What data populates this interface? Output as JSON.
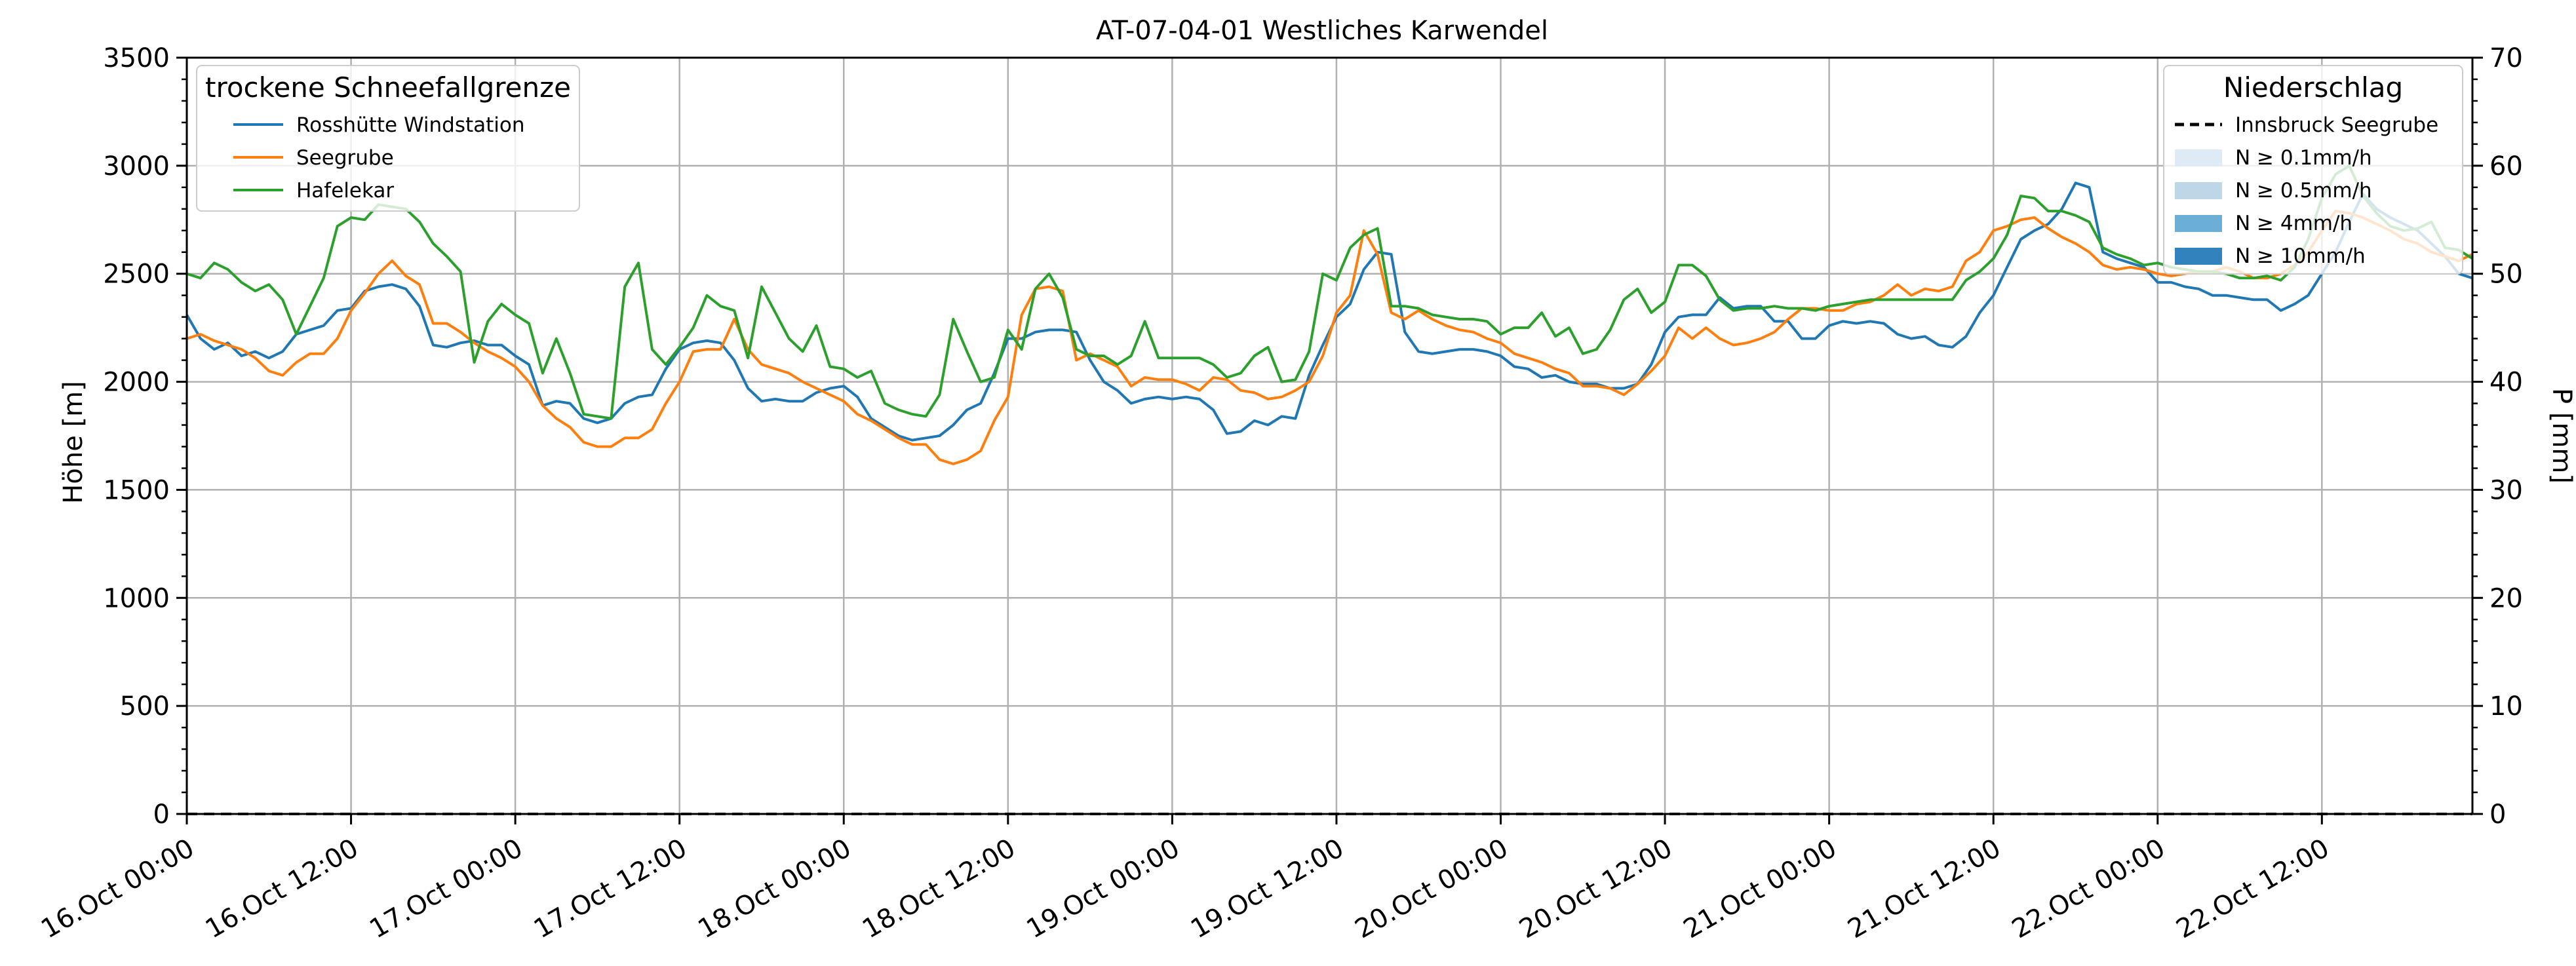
{
  "chart_data": {
    "type": "line",
    "title": "AT-07-04-01 Westliches Karwendel",
    "ylabel": "Höhe [m]",
    "ylabel_right": "P [mm]",
    "ylim": [
      0,
      3500
    ],
    "ylim_right": [
      0,
      70
    ],
    "yticks": [
      0,
      500,
      1000,
      1500,
      2000,
      2500,
      3000,
      3500
    ],
    "yticks_right": [
      0,
      10,
      20,
      30,
      40,
      50,
      60,
      70
    ],
    "xlim_hours": [
      0,
      167
    ],
    "x_step_hours": 1,
    "xticks": [
      {
        "label": "16.Oct 00:00",
        "hour": 0
      },
      {
        "label": "16.Oct 12:00",
        "hour": 12
      },
      {
        "label": "17.Oct 00:00",
        "hour": 24
      },
      {
        "label": "17.Oct 12:00",
        "hour": 36
      },
      {
        "label": "18.Oct 00:00",
        "hour": 48
      },
      {
        "label": "18.Oct 12:00",
        "hour": 60
      },
      {
        "label": "19.Oct 00:00",
        "hour": 72
      },
      {
        "label": "19.Oct 12:00",
        "hour": 84
      },
      {
        "label": "20.Oct 00:00",
        "hour": 96
      },
      {
        "label": "20.Oct 12:00",
        "hour": 108
      },
      {
        "label": "21.Oct 00:00",
        "hour": 120
      },
      {
        "label": "21.Oct 12:00",
        "hour": 132
      },
      {
        "label": "22.Oct 00:00",
        "hour": 144
      },
      {
        "label": "22.Oct 12:00",
        "hour": 156
      }
    ],
    "grid": true,
    "legend_left": {
      "title": "trockene Schneefallgrenze",
      "placement": "top-left"
    },
    "legend_right": {
      "title": "Niederschlag",
      "placement": "top-right",
      "items": [
        {
          "label": "Innsbruck Seegrube",
          "kind": "dashed-line",
          "color": "#000000"
        },
        {
          "label": "N ≥ 0.1mm/h",
          "kind": "patch",
          "color": "#deebf7"
        },
        {
          "label": "N ≥ 0.5mm/h",
          "kind": "patch",
          "color": "#bdd7e7"
        },
        {
          "label": "N ≥ 4mm/h",
          "kind": "patch",
          "color": "#6baed6"
        },
        {
          "label": "N ≥ 10mm/h",
          "kind": "patch",
          "color": "#3182bd"
        }
      ]
    },
    "precipitation_values": [
      0,
      0,
      0,
      0,
      0,
      0,
      0,
      0,
      0,
      0,
      0,
      0,
      0,
      0,
      0,
      0,
      0,
      0,
      0,
      0,
      0,
      0,
      0,
      0,
      0,
      0,
      0,
      0,
      0,
      0,
      0,
      0,
      0,
      0,
      0,
      0,
      0,
      0,
      0,
      0,
      0,
      0,
      0,
      0,
      0,
      0,
      0,
      0,
      0,
      0,
      0,
      0,
      0,
      0,
      0,
      0,
      0,
      0,
      0,
      0,
      0,
      0,
      0,
      0,
      0,
      0,
      0,
      0,
      0,
      0,
      0,
      0,
      0,
      0,
      0,
      0,
      0,
      0,
      0,
      0,
      0,
      0,
      0,
      0,
      0,
      0,
      0,
      0,
      0,
      0,
      0,
      0,
      0,
      0,
      0,
      0,
      0,
      0,
      0,
      0,
      0,
      0,
      0,
      0,
      0,
      0,
      0,
      0,
      0,
      0,
      0,
      0,
      0,
      0,
      0,
      0,
      0,
      0,
      0,
      0,
      0,
      0,
      0,
      0,
      0,
      0,
      0,
      0,
      0,
      0,
      0,
      0,
      0,
      0,
      0,
      0,
      0,
      0,
      0,
      0,
      0,
      0,
      0,
      0,
      0,
      0,
      0,
      0,
      0,
      0,
      0,
      0,
      0,
      0,
      0,
      0,
      0,
      0,
      0,
      0,
      0,
      0,
      0,
      0,
      0,
      0,
      0,
      0
    ],
    "series": [
      {
        "name": "Rosshütte Windstation",
        "color": "#1f77b4",
        "values": [
          2310,
          2200,
          2150,
          2180,
          2120,
          2140,
          2110,
          2140,
          2220,
          2240,
          2260,
          2330,
          2340,
          2420,
          2440,
          2450,
          2430,
          2350,
          2170,
          2160,
          2180,
          2190,
          2170,
          2170,
          2120,
          2080,
          1890,
          1910,
          1900,
          1830,
          1810,
          1830,
          1900,
          1930,
          1940,
          2060,
          2150,
          2180,
          2190,
          2180,
          2100,
          1970,
          1910,
          1920,
          1910,
          1910,
          1950,
          1970,
          1980,
          1930,
          1830,
          1790,
          1750,
          1730,
          1740,
          1750,
          1800,
          1870,
          1900,
          2040,
          2200,
          2200,
          2230,
          2240,
          2240,
          2230,
          2100,
          2000,
          1960,
          1900,
          1920,
          1930,
          1920,
          1930,
          1920,
          1870,
          1760,
          1770,
          1820,
          1800,
          1840,
          1830,
          2030,
          2170,
          2300,
          2360,
          2520,
          2600,
          2590,
          2230,
          2140,
          2130,
          2140,
          2150,
          2150,
          2140,
          2120,
          2070,
          2060,
          2020,
          2030,
          2000,
          1990,
          1990,
          1970,
          1970,
          1990,
          2080,
          2230,
          2300,
          2310,
          2310,
          2390,
          2340,
          2350,
          2350,
          2280,
          2280,
          2200,
          2200,
          2260,
          2280,
          2270,
          2280,
          2270,
          2220,
          2200,
          2210,
          2170,
          2160,
          2210,
          2320,
          2400,
          2530,
          2660,
          2700,
          2730,
          2800,
          2920,
          2900,
          2600,
          2570,
          2550,
          2530,
          2460,
          2460,
          2440,
          2430,
          2400,
          2400,
          2390,
          2380,
          2380,
          2330,
          2360,
          2400,
          2500,
          2600,
          2740,
          2870,
          2800,
          2760,
          2730,
          2700,
          2640,
          2580,
          2500,
          2480
        ]
      },
      {
        "name": "Seegrube",
        "color": "#ff7f0e",
        "values": [
          2200,
          2220,
          2190,
          2170,
          2150,
          2110,
          2050,
          2030,
          2090,
          2130,
          2130,
          2200,
          2330,
          2410,
          2500,
          2560,
          2490,
          2450,
          2270,
          2270,
          2230,
          2180,
          2140,
          2110,
          2070,
          2000,
          1890,
          1830,
          1790,
          1720,
          1700,
          1700,
          1740,
          1740,
          1780,
          1900,
          2000,
          2140,
          2150,
          2150,
          2290,
          2150,
          2080,
          2060,
          2040,
          2000,
          1970,
          1940,
          1910,
          1850,
          1820,
          1780,
          1740,
          1710,
          1710,
          1640,
          1620,
          1640,
          1680,
          1820,
          1930,
          2310,
          2430,
          2440,
          2420,
          2100,
          2130,
          2100,
          2070,
          1980,
          2020,
          2010,
          2010,
          1990,
          1960,
          2020,
          2010,
          1960,
          1950,
          1920,
          1930,
          1960,
          2000,
          2120,
          2320,
          2400,
          2700,
          2590,
          2320,
          2290,
          2330,
          2290,
          2260,
          2240,
          2230,
          2200,
          2180,
          2130,
          2110,
          2090,
          2060,
          2040,
          1980,
          1980,
          1970,
          1940,
          1990,
          2050,
          2120,
          2250,
          2200,
          2250,
          2200,
          2170,
          2180,
          2200,
          2230,
          2290,
          2340,
          2340,
          2330,
          2330,
          2360,
          2370,
          2400,
          2450,
          2400,
          2430,
          2420,
          2440,
          2560,
          2600,
          2700,
          2720,
          2750,
          2760,
          2710,
          2670,
          2640,
          2600,
          2540,
          2520,
          2530,
          2520,
          2500,
          2490,
          2500,
          2510,
          2510,
          2530,
          2510,
          2480,
          2480,
          2500,
          2540,
          2600,
          2700,
          2790,
          2780,
          2760,
          2730,
          2700,
          2660,
          2640,
          2600,
          2580,
          2560,
          2590
        ]
      },
      {
        "name": "Hafelekar",
        "color": "#2ca02c",
        "values": [
          2500,
          2480,
          2550,
          2520,
          2460,
          2420,
          2450,
          2380,
          2220,
          2350,
          2480,
          2720,
          2760,
          2750,
          2820,
          2810,
          2800,
          2740,
          2640,
          2580,
          2510,
          2090,
          2280,
          2360,
          2310,
          2270,
          2040,
          2200,
          2040,
          1850,
          1840,
          1830,
          2440,
          2550,
          2150,
          2080,
          2160,
          2250,
          2400,
          2350,
          2330,
          2110,
          2440,
          2320,
          2200,
          2140,
          2260,
          2070,
          2060,
          2020,
          2050,
          1900,
          1870,
          1850,
          1840,
          1940,
          2290,
          2140,
          2000,
          2020,
          2240,
          2150,
          2430,
          2500,
          2390,
          2150,
          2120,
          2120,
          2080,
          2120,
          2280,
          2110,
          2110,
          2110,
          2110,
          2080,
          2020,
          2040,
          2120,
          2160,
          2000,
          2010,
          2140,
          2500,
          2470,
          2620,
          2680,
          2710,
          2350,
          2350,
          2340,
          2310,
          2300,
          2290,
          2290,
          2280,
          2220,
          2250,
          2250,
          2320,
          2210,
          2250,
          2130,
          2150,
          2240,
          2380,
          2430,
          2320,
          2370,
          2540,
          2540,
          2490,
          2380,
          2330,
          2340,
          2340,
          2350,
          2340,
          2340,
          2330,
          2350,
          2360,
          2370,
          2380,
          2380,
          2380,
          2380,
          2380,
          2380,
          2380,
          2470,
          2510,
          2570,
          2680,
          2860,
          2850,
          2790,
          2790,
          2770,
          2740,
          2620,
          2590,
          2570,
          2540,
          2550,
          2530,
          2520,
          2510,
          2510,
          2500,
          2480,
          2480,
          2490,
          2470,
          2530,
          2660,
          2850,
          2960,
          3000,
          2860,
          2780,
          2720,
          2700,
          2710,
          2740,
          2620,
          2610,
          2570
        ]
      }
    ]
  }
}
